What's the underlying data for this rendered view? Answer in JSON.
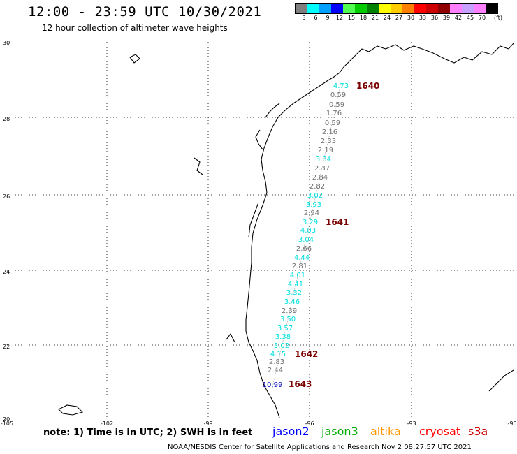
{
  "header": {
    "title": "12:00 - 23:59 UTC 10/30/2021",
    "subtitle": "12 hour collection of altimeter wave heights"
  },
  "color_scale": {
    "labels": [
      "3",
      "6",
      "9",
      "12",
      "15",
      "18",
      "21",
      "24",
      "27",
      "30",
      "33",
      "36",
      "39",
      "42",
      "45",
      "70",
      "(ft)"
    ],
    "colors": [
      "#7f7f7f",
      "#00ffff",
      "#00a0ff",
      "#0000ff",
      "#50ff50",
      "#00cc00",
      "#008000",
      "#ffff00",
      "#ffcc00",
      "#ff8000",
      "#ff0000",
      "#cc0000",
      "#900000",
      "#ff80ff",
      "#c8a0ff",
      "#ff80ff",
      "#000000"
    ]
  },
  "axes": {
    "lat_labels": [
      "30",
      "28",
      "26",
      "24",
      "22",
      "20"
    ],
    "lon_labels": [
      "-105",
      "-102",
      "-99",
      "-96",
      "-93",
      "-90"
    ]
  },
  "observations": [
    {
      "value": "4.73",
      "color": "#00e0e0"
    },
    {
      "value": "0.59",
      "color": "#707070"
    },
    {
      "value": "0.59",
      "color": "#707070"
    },
    {
      "value": "1.76",
      "color": "#707070"
    },
    {
      "value": "0.59",
      "color": "#707070"
    },
    {
      "value": "2.16",
      "color": "#707070"
    },
    {
      "value": "2.33",
      "color": "#707070"
    },
    {
      "value": "2.19",
      "color": "#707070"
    },
    {
      "value": "3.34",
      "color": "#00e0e0"
    },
    {
      "value": "2.37",
      "color": "#707070"
    },
    {
      "value": "2.84",
      "color": "#707070"
    },
    {
      "value": "2.82",
      "color": "#707070"
    },
    {
      "value": "3.02",
      "color": "#00e0e0"
    },
    {
      "value": "3.93",
      "color": "#00e0e0"
    },
    {
      "value": "2.94",
      "color": "#707070"
    },
    {
      "value": "3.29",
      "color": "#00e0e0"
    },
    {
      "value": "4.03",
      "color": "#00e0e0"
    },
    {
      "value": "3.04",
      "color": "#00e0e0"
    },
    {
      "value": "2.66",
      "color": "#707070"
    },
    {
      "value": "4.44",
      "color": "#00e0e0"
    },
    {
      "value": "2.81",
      "color": "#707070"
    },
    {
      "value": "4.01",
      "color": "#00e0e0"
    },
    {
      "value": "4.41",
      "color": "#00e0e0"
    },
    {
      "value": "3.32",
      "color": "#00e0e0"
    },
    {
      "value": "3.46",
      "color": "#00e0e0"
    },
    {
      "value": "2.39",
      "color": "#707070"
    },
    {
      "value": "3.50",
      "color": "#00e0e0"
    },
    {
      "value": "3.57",
      "color": "#00e0e0"
    },
    {
      "value": "3.38",
      "color": "#00e0e0"
    },
    {
      "value": "3.02",
      "color": "#00e0e0"
    },
    {
      "value": "4.15",
      "color": "#00e0e0"
    },
    {
      "value": "2.83",
      "color": "#707070"
    },
    {
      "value": "2.44",
      "color": "#707070"
    },
    {
      "value": "10.99",
      "color": "#0000c0"
    }
  ],
  "pass_labels": [
    "1640",
    "1641",
    "1642",
    "1643"
  ],
  "footer": {
    "note": "note: 1) Time is in UTC; 2) SWH is in feet",
    "satellites": [
      {
        "name": "jason2",
        "color": "#0000ff"
      },
      {
        "name": "jason3",
        "color": "#00aa00"
      },
      {
        "name": "altika",
        "color": "#ff9900"
      },
      {
        "name": "cryosat",
        "color": "#ff0000"
      },
      {
        "name": "s3a",
        "color": "#cc0000"
      }
    ],
    "credit": "NOAA/NESDIS Center for Satellite Applications and Research    Nov  2 08:27:57 UTC 2021"
  }
}
